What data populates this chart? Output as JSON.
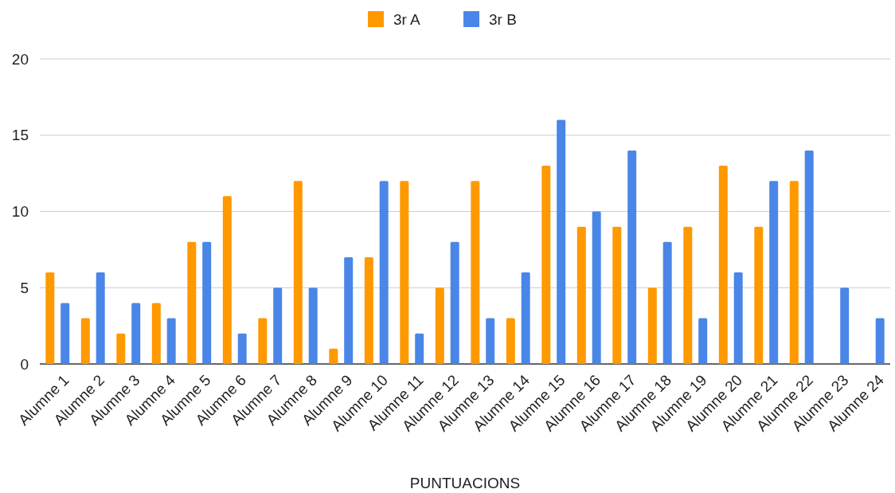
{
  "chart_data": {
    "type": "bar",
    "xlabel": "PUNTUACIONS",
    "categories": [
      "Alumne 1",
      "Alumne 2",
      "Alumne 3",
      "Alumne 4",
      "Alumne 5",
      "Alumne 6",
      "Alumne 7",
      "Alumne 8",
      "Alumne 9",
      "Alumne 10",
      "Alumne 11",
      "Alumne 12",
      "Alumne 13",
      "Alumne 14",
      "Alumne 15",
      "Alumne 16",
      "Alumne 17",
      "Alumne 18",
      "Alumne 19",
      "Alumne 20",
      "Alumne 21",
      "Alumne 22",
      "Alumne 23",
      "Alumne 24"
    ],
    "series": [
      {
        "name": "3r A",
        "color": "#ff9900",
        "values": [
          6,
          3,
          2,
          4,
          8,
          11,
          3,
          12,
          1,
          7,
          12,
          5,
          12,
          3,
          13,
          9,
          9,
          5,
          9,
          13,
          9,
          12,
          null,
          null
        ]
      },
      {
        "name": "3r B",
        "color": "#4a86e8",
        "values": [
          4,
          6,
          4,
          3,
          8,
          2,
          5,
          5,
          7,
          12,
          2,
          8,
          3,
          6,
          16,
          10,
          14,
          8,
          3,
          6,
          12,
          14,
          5,
          3
        ]
      }
    ],
    "ylim": [
      0,
      20
    ],
    "yticks": [
      0,
      5,
      10,
      15,
      20
    ],
    "grid": "y",
    "legend": "top"
  }
}
